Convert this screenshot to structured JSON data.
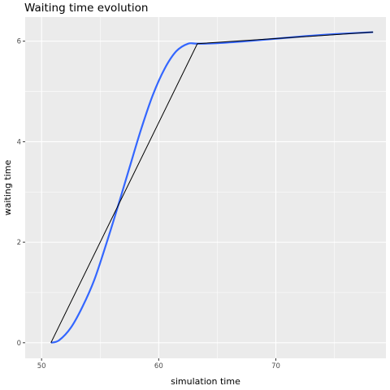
{
  "chart_data": {
    "type": "line",
    "title": "Waiting time evolution",
    "xlabel": "simulation time",
    "ylabel": "waiting time",
    "xlim": [
      48.6,
      79.4
    ],
    "ylim": [
      -0.31,
      6.48
    ],
    "x_ticks": [
      50,
      60,
      70
    ],
    "x_minor_ticks": [
      55,
      65,
      75
    ],
    "y_ticks": [
      0,
      2,
      4,
      6
    ],
    "y_minor_ticks": [
      1,
      3,
      5
    ],
    "grid": true,
    "legend": "none",
    "panel_color": "#ebebeb",
    "series": [
      {
        "kind": "raw",
        "color": "#000000",
        "x": [
          50.8,
          63.3,
          78.3
        ],
        "y": [
          0,
          5.95,
          6.18
        ]
      },
      {
        "kind": "smooth",
        "color": "#3366ff",
        "x": [
          50.8,
          51.5,
          52.5,
          53.5,
          54.5,
          55.5,
          56.5,
          57.5,
          58.5,
          59.5,
          60.5,
          61.5,
          62.5,
          63.3,
          65.0,
          67.5,
          70.0,
          72.5,
          75.0,
          78.3
        ],
        "y": [
          0,
          0.05,
          0.3,
          0.72,
          1.25,
          1.95,
          2.7,
          3.48,
          4.25,
          4.93,
          5.45,
          5.8,
          5.95,
          5.95,
          5.96,
          6.0,
          6.05,
          6.1,
          6.14,
          6.18
        ]
      }
    ]
  }
}
